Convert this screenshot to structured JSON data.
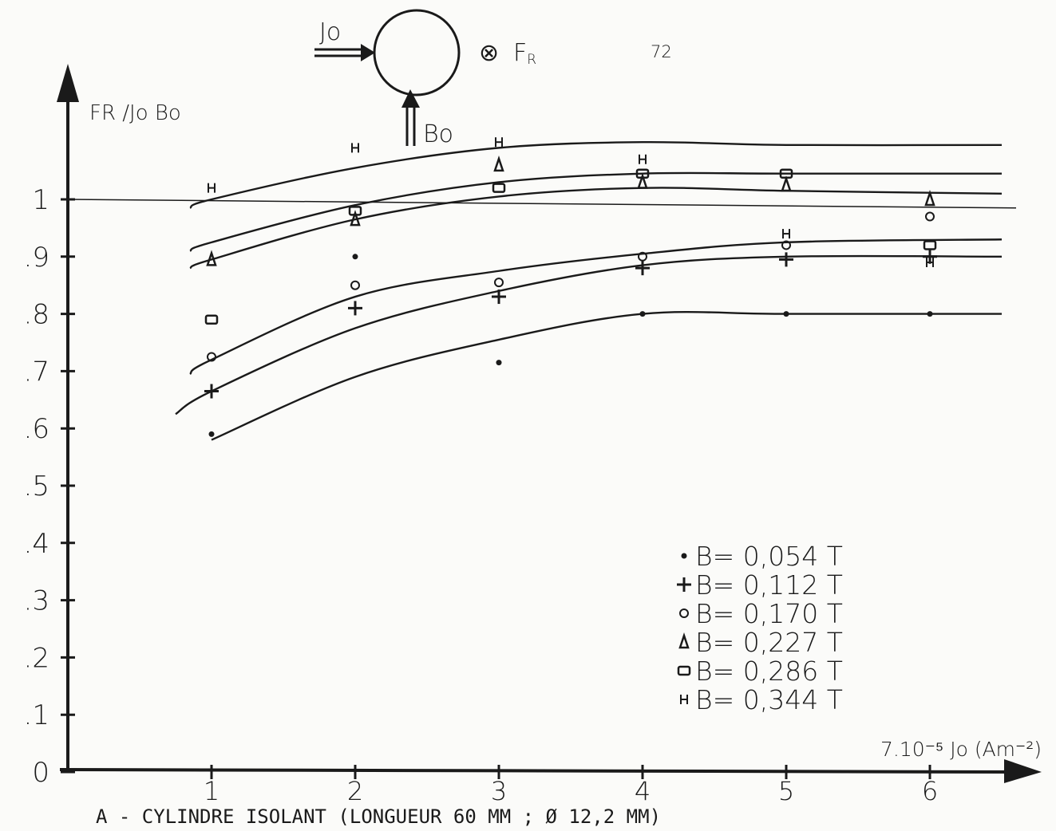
{
  "page": {
    "number": "72"
  },
  "schematic": {
    "current_label": "Jo",
    "field_label": "Bo",
    "force_label": "F",
    "force_subscript": "R",
    "force_symbol": "⊗"
  },
  "chart_data": {
    "type": "scatter",
    "ylabel": "FR /Jo Bo",
    "xlabel": "7.10⁻⁵ Jo (Am⁻²)",
    "caption": "A - CYLINDRE ISOLANT (LONGUEUR 60 MM ; Ø 12,2 MM)",
    "xlim": [
      0,
      6.8
    ],
    "ylim": [
      0,
      1.15
    ],
    "x_ticks": [
      "1",
      "2",
      "3",
      "4",
      "5",
      "6"
    ],
    "x_tick_values": [
      1,
      2,
      3,
      4,
      5,
      6
    ],
    "y_ticks": [
      "0",
      ".1",
      ".2",
      ".3",
      ".4",
      ".5",
      ".6",
      ".7",
      ".8",
      ".9",
      "1"
    ],
    "y_tick_values": [
      0,
      0.1,
      0.2,
      0.3,
      0.4,
      0.5,
      0.6,
      0.7,
      0.8,
      0.9,
      1.0
    ],
    "reference_line": {
      "y_start": 1.0,
      "y_end": 0.985
    },
    "series": [
      {
        "name": "B= 0,054 T",
        "marker": "dot",
        "points": [
          [
            1,
            0.59
          ],
          [
            2,
            0.9
          ],
          [
            3,
            0.715
          ],
          [
            4,
            0.8
          ],
          [
            5,
            0.8
          ],
          [
            6,
            0.8
          ]
        ],
        "curve": [
          [
            1.0,
            0.58
          ],
          [
            2.0,
            0.69
          ],
          [
            3.0,
            0.755
          ],
          [
            4.0,
            0.8
          ],
          [
            5.0,
            0.8
          ],
          [
            6.5,
            0.8
          ]
        ]
      },
      {
        "name": "B= 0,112 T",
        "marker": "plus",
        "points": [
          [
            1,
            0.665
          ],
          [
            2,
            0.81
          ],
          [
            3,
            0.83
          ],
          [
            4,
            0.88
          ],
          [
            5,
            0.895
          ],
          [
            6,
            0.9
          ]
        ],
        "curve": [
          [
            0.75,
            0.625
          ],
          [
            1.0,
            0.665
          ],
          [
            2.0,
            0.775
          ],
          [
            3.0,
            0.84
          ],
          [
            4.0,
            0.885
          ],
          [
            5.0,
            0.9
          ],
          [
            6.5,
            0.9
          ]
        ]
      },
      {
        "name": "B= 0,170 T",
        "marker": "circle",
        "points": [
          [
            1,
            0.725
          ],
          [
            2,
            0.85
          ],
          [
            3,
            0.855
          ],
          [
            4,
            0.9
          ],
          [
            5,
            0.92
          ],
          [
            6,
            0.97
          ]
        ],
        "curve": [
          [
            0.85,
            0.695
          ],
          [
            1.0,
            0.72
          ],
          [
            2.0,
            0.83
          ],
          [
            3.0,
            0.875
          ],
          [
            4.0,
            0.905
          ],
          [
            5.0,
            0.925
          ],
          [
            6.5,
            0.93
          ]
        ]
      },
      {
        "name": "B= 0,227 T",
        "marker": "triangle",
        "points": [
          [
            1,
            0.895
          ],
          [
            2,
            0.965
          ],
          [
            3,
            1.06
          ],
          [
            4,
            1.03
          ],
          [
            5,
            1.025
          ],
          [
            6,
            1.0
          ]
        ],
        "curve": [
          [
            0.85,
            0.88
          ],
          [
            1.0,
            0.895
          ],
          [
            2.0,
            0.965
          ],
          [
            3.0,
            1.005
          ],
          [
            4.0,
            1.02
          ],
          [
            5.0,
            1.015
          ],
          [
            6.5,
            1.01
          ]
        ]
      },
      {
        "name": "B= 0,286 T",
        "marker": "square",
        "points": [
          [
            1,
            0.79
          ],
          [
            2,
            0.98
          ],
          [
            3,
            1.02
          ],
          [
            4,
            1.045
          ],
          [
            5,
            1.045
          ],
          [
            6,
            0.92
          ]
        ],
        "curve": [
          [
            0.85,
            0.91
          ],
          [
            1.0,
            0.925
          ],
          [
            2.0,
            0.99
          ],
          [
            3.0,
            1.03
          ],
          [
            4.0,
            1.045
          ],
          [
            5.0,
            1.045
          ],
          [
            6.5,
            1.045
          ]
        ]
      },
      {
        "name": "B= 0,344 T",
        "marker": "H",
        "points": [
          [
            1,
            1.02
          ],
          [
            2,
            1.09
          ],
          [
            3,
            1.1
          ],
          [
            4,
            1.07
          ],
          [
            5,
            0.94
          ],
          [
            6,
            0.89
          ]
        ],
        "curve": [
          [
            0.85,
            0.985
          ],
          [
            1.0,
            1.0
          ],
          [
            2.0,
            1.055
          ],
          [
            3.0,
            1.09
          ],
          [
            4.0,
            1.1
          ],
          [
            5.0,
            1.095
          ],
          [
            6.5,
            1.095
          ]
        ]
      }
    ],
    "legend": {
      "placement": "lower-right",
      "entries": [
        "B= 0,054 T",
        "B= 0,112 T",
        "B= 0,170 T",
        "B= 0,227 T",
        "B= 0,286 T",
        "B= 0,344 T"
      ]
    }
  }
}
